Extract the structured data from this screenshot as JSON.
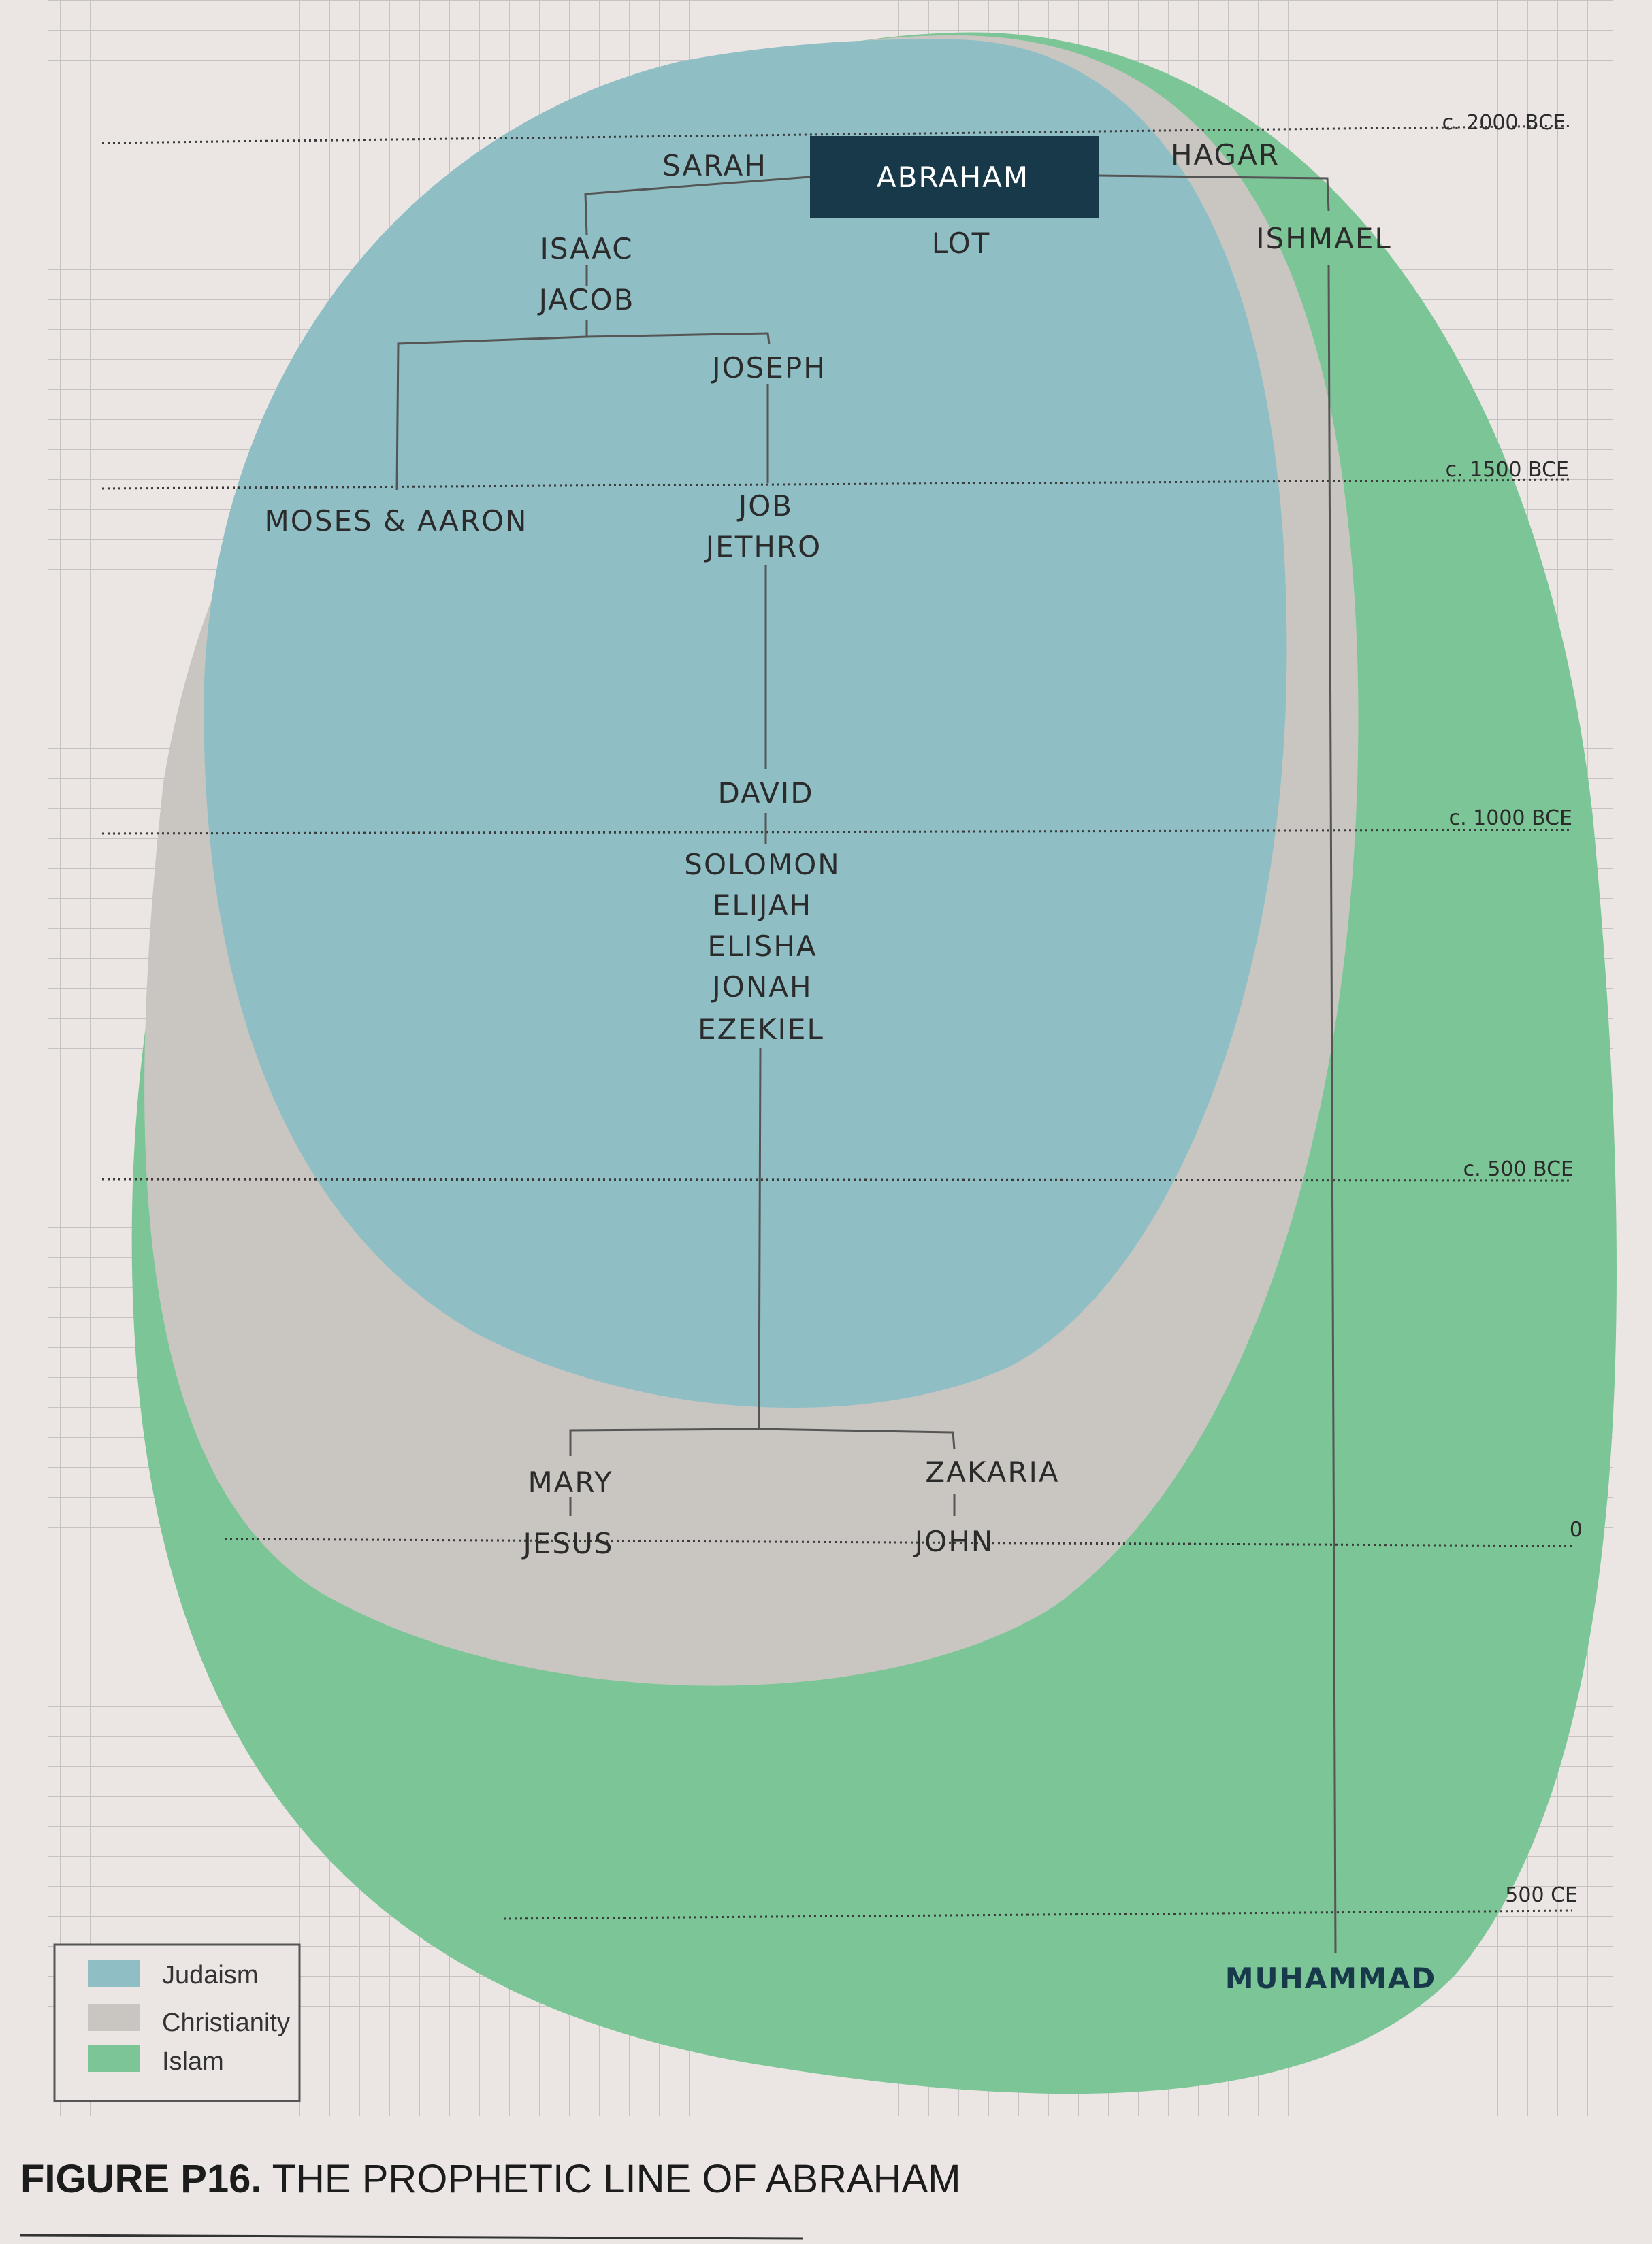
{
  "figure": {
    "caption_number": "FIGURE P16.",
    "caption_title": " THE PROPHETIC LINE OF ABRAHAM"
  },
  "timeline": [
    "c. 2000 BCE",
    "c. 1500 BCE",
    "c. 1000 BCE",
    "c. 500 BCE",
    "0",
    "500 CE"
  ],
  "people": {
    "abraham": "ABRAHAM",
    "sarah": "SARAH",
    "hagar": "HAGAR",
    "lot": "LOT",
    "ishmael": "ISHMAEL",
    "isaac": "ISAAC",
    "jacob": "JACOB",
    "joseph": "JOSEPH",
    "moses_aaron": "MOSES & AARON",
    "job": "JOB",
    "jethro": "JETHRO",
    "david": "DAVID",
    "solomon": "SOLOMON",
    "elijah": "ELIJAH",
    "elisha": "ELISHA",
    "jonah": "JONAH",
    "ezekiel": "EZEKIEL",
    "mary": "MARY",
    "jesus": "JESUS",
    "zakaria": "ZAKARIA",
    "john": "JOHN",
    "muhammad": "MUHAMMAD"
  },
  "legend": [
    {
      "label": "Judaism",
      "color": "#8fbfc5"
    },
    {
      "label": "Christianity",
      "color": "#c9c6c1"
    },
    {
      "label": "Islam",
      "color": "#7cc596"
    }
  ],
  "colors": {
    "abraham_box": "#17394a",
    "muhammad_text": "#17394a"
  }
}
